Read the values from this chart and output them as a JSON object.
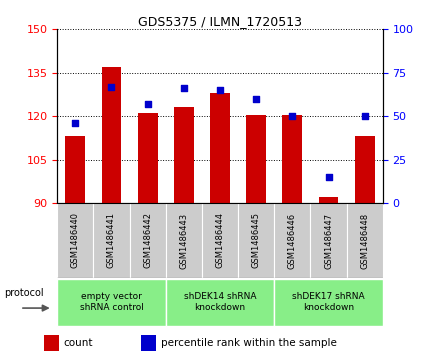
{
  "title": "GDS5375 / ILMN_1720513",
  "samples": [
    "GSM1486440",
    "GSM1486441",
    "GSM1486442",
    "GSM1486443",
    "GSM1486444",
    "GSM1486445",
    "GSM1486446",
    "GSM1486447",
    "GSM1486448"
  ],
  "counts": [
    113,
    137,
    121,
    123,
    128,
    120.5,
    120.5,
    92,
    113
  ],
  "percentiles": [
    46,
    67,
    57,
    66,
    65,
    60,
    50,
    15,
    50
  ],
  "ylim_left": [
    90,
    150
  ],
  "ylim_right": [
    0,
    100
  ],
  "yticks_left": [
    90,
    105,
    120,
    135,
    150
  ],
  "yticks_right": [
    0,
    25,
    50,
    75,
    100
  ],
  "bar_color": "#cc0000",
  "dot_color": "#0000cc",
  "bar_width": 0.55,
  "group_boundaries": [
    [
      0,
      3,
      "empty vector\nshRNA control"
    ],
    [
      3,
      6,
      "shDEK14 shRNA\nknockdown"
    ],
    [
      6,
      9,
      "shDEK17 shRNA\nknockdown"
    ]
  ],
  "group_color": "#88ee88",
  "gray_color": "#cccccc",
  "legend_count_label": "count",
  "legend_percentile_label": "percentile rank within the sample",
  "protocol_label": "protocol",
  "figsize": [
    4.4,
    3.63
  ],
  "dpi": 100
}
